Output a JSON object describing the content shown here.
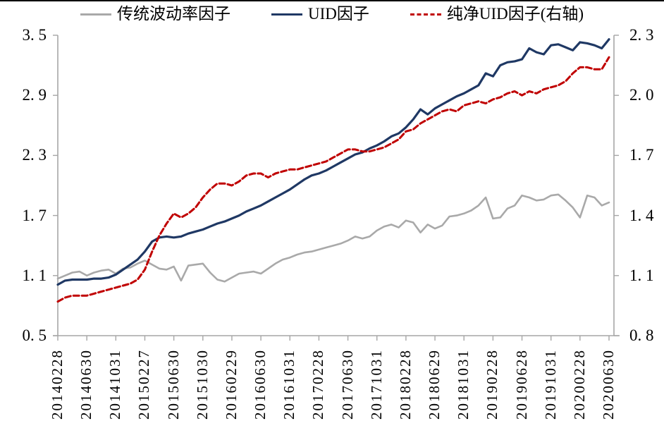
{
  "page": {
    "background": "#ffffff",
    "top_border_color": "#000000"
  },
  "legend": {
    "items": [
      {
        "label": "传统波动率因子",
        "color": "#a9a9a9",
        "dash": "solid"
      },
      {
        "label": "UID因子",
        "color": "#1f3864",
        "dash": "solid"
      },
      {
        "label": "纯净UID因子(右轴)",
        "color": "#c00000",
        "dash": "dashed"
      }
    ]
  },
  "axes": {
    "left": {
      "tick_labels": [
        "3. 5",
        "2. 9",
        "2. 3",
        "1. 7",
        "1. 1",
        "0. 5"
      ],
      "tick_values": [
        3.5,
        2.9,
        2.3,
        1.7,
        1.1,
        0.5
      ]
    },
    "right": {
      "tick_labels": [
        "2. 3",
        "2. 0",
        "1. 7",
        "1. 4",
        "1. 1",
        "0. 8"
      ],
      "tick_values": [
        2.3,
        2.0,
        1.7,
        1.4,
        1.1,
        0.8
      ]
    },
    "x": {
      "tick_labels": [
        "20140228",
        "20140630",
        "20141031",
        "20150227",
        "20150630",
        "20151030",
        "20160229",
        "20160630",
        "20161031",
        "20170228",
        "20170630",
        "20171031",
        "20180228",
        "20180629",
        "20181031",
        "20190228",
        "20190628",
        "20191031",
        "20200228",
        "20200630"
      ]
    }
  },
  "chart_data": {
    "type": "line",
    "title": "",
    "xlabel": "",
    "ylabel_left": "",
    "ylabel_right": "",
    "grid": false,
    "legend_position": "top",
    "left_ylim": [
      0.5,
      3.5
    ],
    "right_ylim": [
      0.8,
      2.3
    ],
    "left_ticks": [
      0.5,
      1.1,
      1.7,
      2.3,
      2.9,
      3.5
    ],
    "right_ticks": [
      0.8,
      1.1,
      1.4,
      1.7,
      2.0,
      2.3
    ],
    "x_axis_tick_labels": [
      "20140228",
      "20140630",
      "20141031",
      "20150227",
      "20150630",
      "20151030",
      "20160229",
      "20160630",
      "20161031",
      "20170228",
      "20170630",
      "20171031",
      "20180228",
      "20180629",
      "20181031",
      "20190228",
      "20190628",
      "20191031",
      "20200228",
      "20200630"
    ],
    "categories": [
      "201402",
      "201403",
      "201404",
      "201405",
      "201406",
      "201407",
      "201408",
      "201409",
      "201410",
      "201411",
      "201412",
      "201501",
      "201502",
      "201503",
      "201504",
      "201505",
      "201506",
      "201507",
      "201508",
      "201509",
      "201510",
      "201511",
      "201512",
      "201601",
      "201602",
      "201603",
      "201604",
      "201605",
      "201606",
      "201607",
      "201608",
      "201609",
      "201610",
      "201611",
      "201612",
      "201701",
      "201702",
      "201703",
      "201704",
      "201705",
      "201706",
      "201707",
      "201708",
      "201709",
      "201710",
      "201711",
      "201712",
      "201801",
      "201802",
      "201803",
      "201804",
      "201805",
      "201806",
      "201807",
      "201808",
      "201809",
      "201810",
      "201811",
      "201812",
      "201901",
      "201902",
      "201903",
      "201904",
      "201905",
      "201906",
      "201907",
      "201908",
      "201909",
      "201910",
      "201911",
      "201912",
      "202001",
      "202002",
      "202003",
      "202004",
      "202005",
      "202006"
    ],
    "series": [
      {
        "name": "传统波动率因子",
        "axis": "left",
        "color": "#a9a9a9",
        "style": "solid",
        "stroke_width": 2.6,
        "values": [
          1.07,
          1.1,
          1.13,
          1.14,
          1.1,
          1.13,
          1.15,
          1.16,
          1.12,
          1.17,
          1.18,
          1.22,
          1.25,
          1.21,
          1.17,
          1.16,
          1.19,
          1.05,
          1.2,
          1.21,
          1.22,
          1.13,
          1.06,
          1.04,
          1.08,
          1.12,
          1.13,
          1.14,
          1.12,
          1.17,
          1.22,
          1.26,
          1.28,
          1.31,
          1.33,
          1.34,
          1.36,
          1.38,
          1.4,
          1.42,
          1.45,
          1.49,
          1.47,
          1.49,
          1.55,
          1.59,
          1.61,
          1.58,
          1.65,
          1.63,
          1.53,
          1.61,
          1.57,
          1.6,
          1.69,
          1.7,
          1.72,
          1.75,
          1.8,
          1.88,
          1.67,
          1.68,
          1.77,
          1.8,
          1.9,
          1.88,
          1.85,
          1.86,
          1.9,
          1.91,
          1.85,
          1.78,
          1.68,
          1.9,
          1.88,
          1.8,
          1.83
        ]
      },
      {
        "name": "UID因子",
        "axis": "left",
        "color": "#1f3864",
        "style": "solid",
        "stroke_width": 3.2,
        "values": [
          1.01,
          1.05,
          1.06,
          1.06,
          1.06,
          1.07,
          1.07,
          1.08,
          1.11,
          1.16,
          1.21,
          1.26,
          1.34,
          1.44,
          1.48,
          1.49,
          1.48,
          1.49,
          1.52,
          1.54,
          1.56,
          1.59,
          1.62,
          1.64,
          1.67,
          1.7,
          1.74,
          1.77,
          1.8,
          1.84,
          1.88,
          1.92,
          1.96,
          2.01,
          2.06,
          2.1,
          2.12,
          2.15,
          2.19,
          2.23,
          2.27,
          2.31,
          2.33,
          2.37,
          2.4,
          2.44,
          2.49,
          2.52,
          2.58,
          2.66,
          2.76,
          2.71,
          2.77,
          2.81,
          2.85,
          2.89,
          2.92,
          2.96,
          3.0,
          3.12,
          3.09,
          3.2,
          3.23,
          3.24,
          3.26,
          3.37,
          3.33,
          3.31,
          3.4,
          3.41,
          3.38,
          3.35,
          3.43,
          3.42,
          3.4,
          3.37,
          3.46
        ]
      },
      {
        "name": "纯净UID因子(右轴)",
        "axis": "right",
        "color": "#c00000",
        "style": "dashed",
        "stroke_width": 3.0,
        "values": [
          0.97,
          0.99,
          1.0,
          1.0,
          1.0,
          1.01,
          1.02,
          1.03,
          1.04,
          1.05,
          1.06,
          1.08,
          1.13,
          1.22,
          1.3,
          1.36,
          1.41,
          1.39,
          1.41,
          1.44,
          1.49,
          1.53,
          1.56,
          1.56,
          1.55,
          1.57,
          1.6,
          1.61,
          1.61,
          1.59,
          1.61,
          1.62,
          1.63,
          1.63,
          1.64,
          1.65,
          1.66,
          1.67,
          1.69,
          1.71,
          1.73,
          1.73,
          1.72,
          1.72,
          1.73,
          1.74,
          1.76,
          1.78,
          1.82,
          1.83,
          1.86,
          1.88,
          1.9,
          1.92,
          1.93,
          1.92,
          1.95,
          1.96,
          1.97,
          1.96,
          1.98,
          1.99,
          2.01,
          2.02,
          2.0,
          2.02,
          2.01,
          2.03,
          2.04,
          2.05,
          2.07,
          2.11,
          2.14,
          2.14,
          2.13,
          2.13,
          2.19
        ]
      }
    ]
  }
}
